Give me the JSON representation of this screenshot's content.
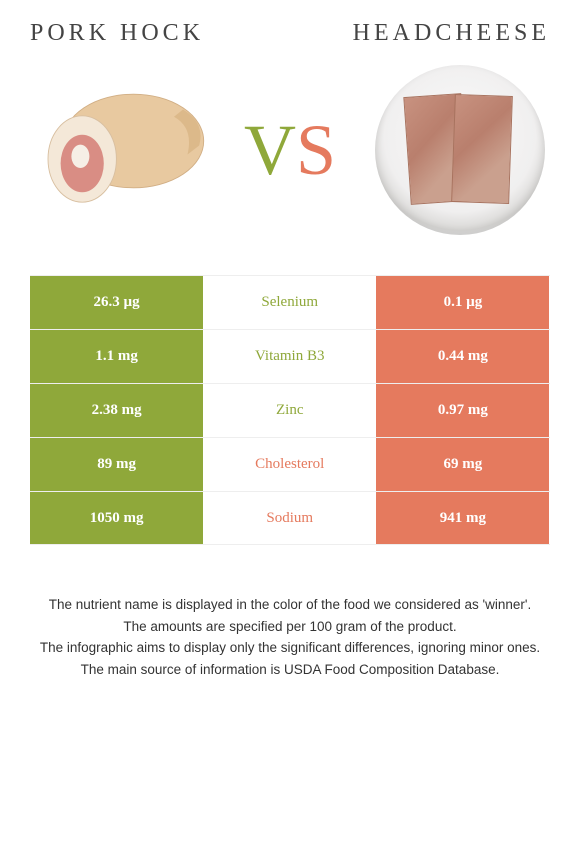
{
  "header": {
    "left_title": "Pork hock",
    "right_title": "Headcheese",
    "vs_v": "V",
    "vs_s": "S"
  },
  "colors": {
    "left_bg": "#8fa83a",
    "right_bg": "#e57a5e",
    "winner_left_text": "#8fa83a",
    "winner_right_text": "#e57a5e"
  },
  "rows": [
    {
      "left": "26.3 µg",
      "nutrient": "Selenium",
      "right": "0.1 µg",
      "winner": "left"
    },
    {
      "left": "1.1 mg",
      "nutrient": "Vitamin B3",
      "right": "0.44 mg",
      "winner": "left"
    },
    {
      "left": "2.38 mg",
      "nutrient": "Zinc",
      "right": "0.97 mg",
      "winner": "left"
    },
    {
      "left": "89 mg",
      "nutrient": "Cholesterol",
      "right": "69 mg",
      "winner": "right"
    },
    {
      "left": "1050 mg",
      "nutrient": "Sodium",
      "right": "941 mg",
      "winner": "right"
    }
  ],
  "footer": {
    "line1": "The nutrient name is displayed in the color of the food we considered as 'winner'.",
    "line2": "The amounts are specified per 100 gram of the product.",
    "line3": "The infographic aims to display only the significant differences, ignoring minor ones.",
    "line4": "The main source of information is USDA Food Composition Database."
  }
}
